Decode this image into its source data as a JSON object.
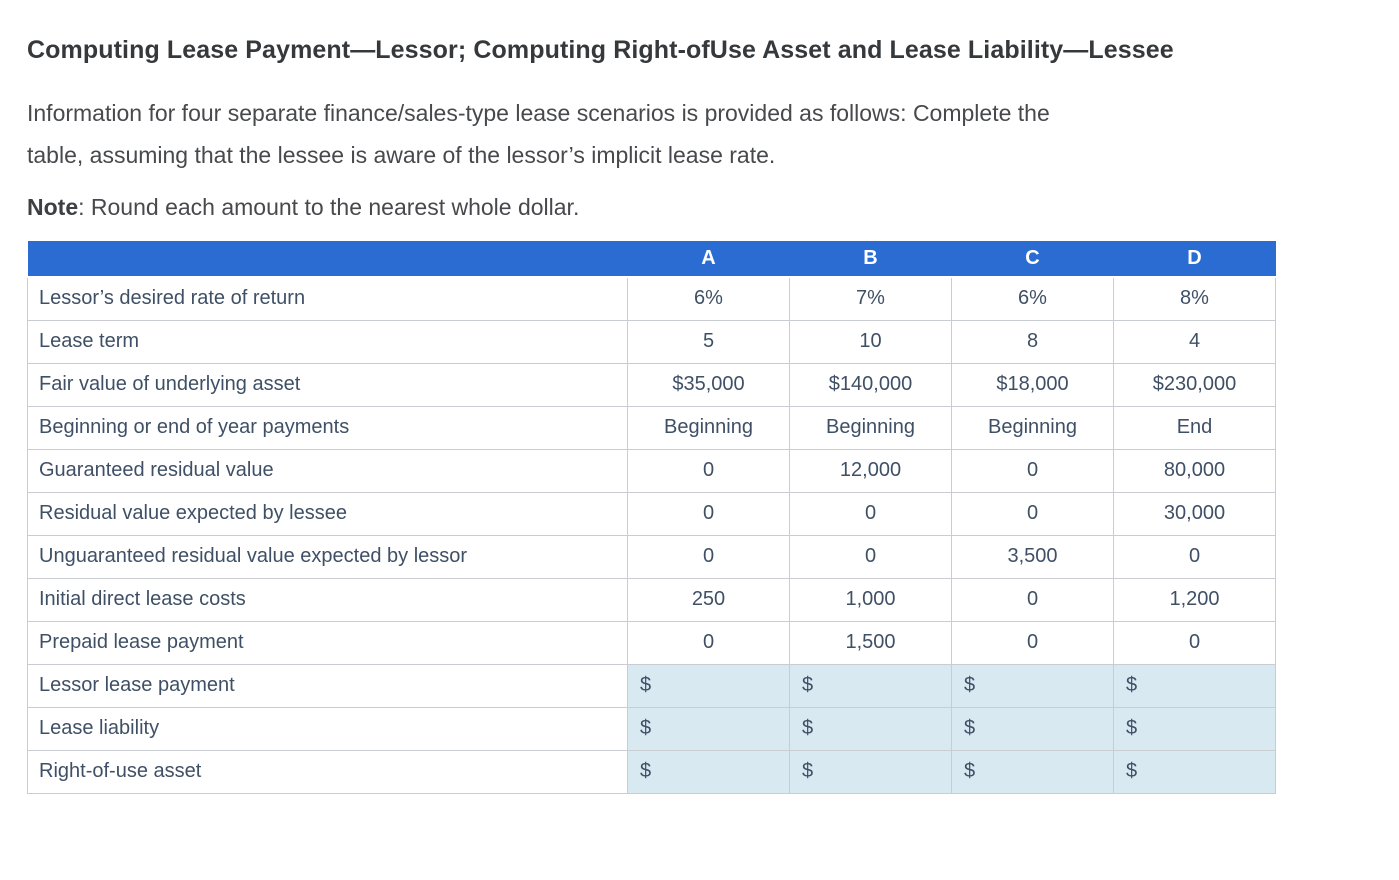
{
  "page": {
    "title": "Computing Lease Payment—Lessor; Computing Right-ofUse Asset and Lease Liability—Lessee",
    "intro_line1": "Information for four separate finance/sales-type lease scenarios is provided as follows: Complete the",
    "intro_line2": "table, assuming that the lessee is aware of the lessor’s implicit lease rate.",
    "note_label": "Note",
    "note_text": ": Round each amount to the nearest whole dollar."
  },
  "colors": {
    "header_bg": "#2b6cd3",
    "input_cell_bg": "#d9e9f2",
    "table_text": "#3f5066",
    "grid_line": "#c9cdd2"
  },
  "table": {
    "columns": [
      "A",
      "B",
      "C",
      "D"
    ],
    "rows": [
      {
        "label": "Lessor’s desired rate of return",
        "values": [
          "6%",
          "7%",
          "6%",
          "8%"
        ],
        "input": false
      },
      {
        "label": "Lease term",
        "values": [
          "5",
          "10",
          "8",
          "4"
        ],
        "input": false
      },
      {
        "label": "Fair value of underlying asset",
        "values": [
          "$35,000",
          "$140,000",
          "$18,000",
          "$230,000"
        ],
        "input": false
      },
      {
        "label": "Beginning or end of year payments",
        "values": [
          "Beginning",
          "Beginning",
          "Beginning",
          "End"
        ],
        "input": false
      },
      {
        "label": "Guaranteed residual value",
        "values": [
          "0",
          "12,000",
          "0",
          "80,000"
        ],
        "input": false
      },
      {
        "label": "Residual value expected by lessee",
        "values": [
          "0",
          "0",
          "0",
          "30,000"
        ],
        "input": false
      },
      {
        "label": "Unguaranteed residual value expected by lessor",
        "values": [
          "0",
          "0",
          "3,500",
          "0"
        ],
        "input": false
      },
      {
        "label": "Initial direct lease costs",
        "values": [
          "250",
          "1,000",
          "0",
          "1,200"
        ],
        "input": false
      },
      {
        "label": "Prepaid lease payment",
        "values": [
          "0",
          "1,500",
          "0",
          "0"
        ],
        "input": false
      },
      {
        "label": "Lessor lease payment",
        "values": [
          "$",
          "$",
          "$",
          "$"
        ],
        "input": true
      },
      {
        "label": "Lease liability",
        "values": [
          "$",
          "$",
          "$",
          "$"
        ],
        "input": true
      },
      {
        "label": "Right-of-use asset",
        "values": [
          "$",
          "$",
          "$",
          "$"
        ],
        "input": true
      }
    ]
  }
}
